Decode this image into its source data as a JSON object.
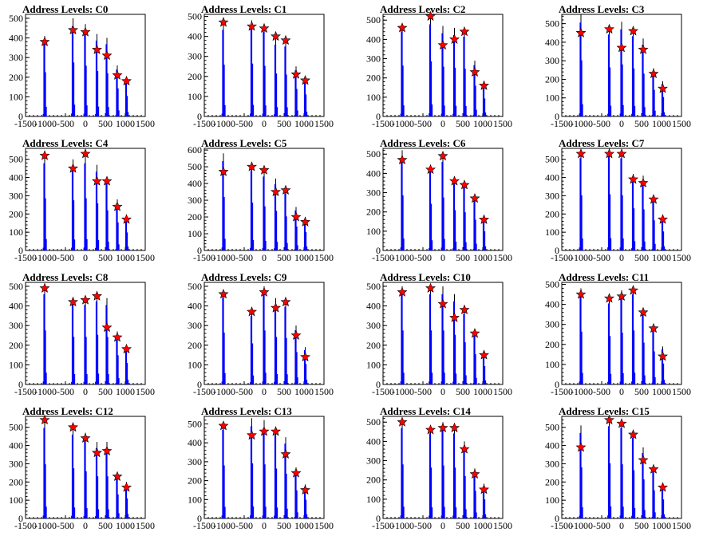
{
  "x_ticks": [
    "-1500",
    "-1000",
    "-500",
    "0",
    "500",
    "1000",
    "1500"
  ],
  "colors": {
    "hist": "#0000ff",
    "marker": "#ff0000",
    "marker_edge": "#000000",
    "axis": "#000000"
  },
  "chart_data": [
    {
      "type": "bar",
      "title": "Address Levels: C0",
      "xlim": [
        -1500,
        1500
      ],
      "ylim": [
        0,
        520
      ],
      "yticks": [
        0,
        100,
        200,
        300,
        400,
        500
      ],
      "bins": [
        -1020,
        -310,
        0,
        290,
        540,
        800,
        1030
      ],
      "values": [
        410,
        500,
        470,
        420,
        400,
        260,
        190
      ],
      "markers": [
        380,
        440,
        430,
        340,
        310,
        210,
        180
      ]
    },
    {
      "type": "bar",
      "title": "Address Levels: C1",
      "xlim": [
        -1500,
        1500
      ],
      "ylim": [
        0,
        510
      ],
      "yticks": [
        0,
        100,
        200,
        300,
        400,
        500
      ],
      "bins": [
        -1020,
        -310,
        0,
        290,
        540,
        800,
        1030
      ],
      "values": [
        470,
        480,
        460,
        390,
        380,
        250,
        200
      ],
      "markers": [
        470,
        450,
        440,
        400,
        380,
        210,
        180
      ]
    },
    {
      "type": "bar",
      "title": "Address Levels: C2",
      "xlim": [
        -1500,
        1500
      ],
      "ylim": [
        0,
        530
      ],
      "yticks": [
        0,
        100,
        200,
        300,
        400,
        500
      ],
      "bins": [
        -1020,
        -310,
        0,
        290,
        540,
        800,
        1030
      ],
      "values": [
        480,
        520,
        470,
        460,
        450,
        290,
        170
      ],
      "markers": [
        460,
        520,
        370,
        400,
        440,
        230,
        160
      ]
    },
    {
      "type": "bar",
      "title": "Address Levels: C3",
      "xlim": [
        -1500,
        1500
      ],
      "ylim": [
        0,
        550
      ],
      "yticks": [
        0,
        100,
        200,
        300,
        400,
        500
      ],
      "bins": [
        -1020,
        -310,
        0,
        290,
        540,
        800,
        1030
      ],
      "values": [
        550,
        480,
        510,
        470,
        420,
        260,
        190
      ],
      "markers": [
        450,
        470,
        370,
        460,
        360,
        230,
        150
      ]
    },
    {
      "type": "bar",
      "title": "Address Levels: C4",
      "xlim": [
        -1500,
        1500
      ],
      "ylim": [
        0,
        560
      ],
      "yticks": [
        0,
        100,
        200,
        300,
        400,
        500
      ],
      "bins": [
        -1020,
        -310,
        0,
        290,
        540,
        800,
        1030
      ],
      "values": [
        520,
        500,
        520,
        470,
        400,
        280,
        180
      ],
      "markers": [
        520,
        450,
        530,
        380,
        380,
        240,
        170
      ]
    },
    {
      "type": "bar",
      "title": "Address Levels: C5",
      "xlim": [
        -1500,
        1500
      ],
      "ylim": [
        0,
        610
      ],
      "yticks": [
        0,
        100,
        200,
        300,
        400,
        500,
        600
      ],
      "bins": [
        -1020,
        -310,
        0,
        290,
        540,
        800,
        1030
      ],
      "values": [
        580,
        520,
        480,
        430,
        370,
        260,
        200
      ],
      "markers": [
        470,
        500,
        480,
        350,
        360,
        200,
        170
      ]
    },
    {
      "type": "bar",
      "title": "Address Levels: C6",
      "xlim": [
        -1500,
        1500
      ],
      "ylim": [
        0,
        530
      ],
      "yticks": [
        0,
        100,
        200,
        300,
        400,
        500
      ],
      "bins": [
        -1020,
        -310,
        0,
        290,
        540,
        800,
        1030
      ],
      "values": [
        520,
        440,
        500,
        380,
        360,
        290,
        180
      ],
      "markers": [
        470,
        420,
        490,
        360,
        340,
        270,
        160
      ]
    },
    {
      "type": "bar",
      "title": "Address Levels: C7",
      "xlim": [
        -1500,
        1500
      ],
      "ylim": [
        0,
        560
      ],
      "yticks": [
        0,
        100,
        200,
        300,
        400,
        500
      ],
      "bins": [
        -1020,
        -310,
        0,
        290,
        540,
        800,
        1030
      ],
      "values": [
        550,
        560,
        550,
        420,
        410,
        300,
        190
      ],
      "markers": [
        530,
        530,
        530,
        390,
        370,
        280,
        170
      ]
    },
    {
      "type": "bar",
      "title": "Address Levels: C8",
      "xlim": [
        -1500,
        1500
      ],
      "ylim": [
        0,
        520
      ],
      "yticks": [
        0,
        100,
        200,
        300,
        400,
        500
      ],
      "bins": [
        -1020,
        -310,
        0,
        290,
        540,
        800,
        1030
      ],
      "values": [
        500,
        440,
        440,
        460,
        440,
        270,
        200
      ],
      "markers": [
        490,
        420,
        430,
        450,
        290,
        240,
        180
      ]
    },
    {
      "type": "bar",
      "title": "Address Levels: C9",
      "xlim": [
        -1500,
        1500
      ],
      "ylim": [
        0,
        520
      ],
      "yticks": [
        0,
        100,
        200,
        300,
        400,
        500
      ],
      "bins": [
        -1020,
        -310,
        0,
        290,
        540,
        800,
        1030
      ],
      "values": [
        480,
        380,
        500,
        440,
        430,
        300,
        190
      ],
      "markers": [
        460,
        370,
        470,
        390,
        420,
        250,
        140
      ]
    },
    {
      "type": "bar",
      "title": "Address Levels: C10",
      "xlim": [
        -1500,
        1500
      ],
      "ylim": [
        0,
        520
      ],
      "yticks": [
        0,
        100,
        200,
        300,
        400,
        500
      ],
      "bins": [
        -1020,
        -310,
        0,
        290,
        540,
        800,
        1030
      ],
      "values": [
        500,
        500,
        500,
        460,
        390,
        280,
        170
      ],
      "markers": [
        470,
        490,
        410,
        340,
        380,
        260,
        150
      ]
    },
    {
      "type": "bar",
      "title": "Address Levels: C11",
      "xlim": [
        -1500,
        1500
      ],
      "ylim": [
        0,
        510
      ],
      "yticks": [
        0,
        100,
        200,
        300,
        400,
        500
      ],
      "bins": [
        -1020,
        -310,
        0,
        290,
        540,
        800,
        1030
      ],
      "values": [
        480,
        440,
        470,
        490,
        380,
        300,
        190
      ],
      "markers": [
        450,
        430,
        440,
        470,
        360,
        280,
        140
      ]
    },
    {
      "type": "bar",
      "title": "Address Levels: C12",
      "xlim": [
        -1500,
        1500
      ],
      "ylim": [
        0,
        560
      ],
      "yticks": [
        0,
        100,
        200,
        300,
        400,
        500
      ],
      "bins": [
        -1020,
        -310,
        0,
        290,
        540,
        800,
        1030
      ],
      "values": [
        540,
        500,
        470,
        420,
        420,
        240,
        200
      ],
      "markers": [
        540,
        500,
        440,
        360,
        370,
        230,
        170
      ]
    },
    {
      "type": "bar",
      "title": "Address Levels: C13",
      "xlim": [
        -1500,
        1500
      ],
      "ylim": [
        0,
        540
      ],
      "yticks": [
        0,
        100,
        200,
        300,
        400,
        500
      ],
      "bins": [
        -1020,
        -310,
        0,
        290,
        540,
        800,
        1030
      ],
      "values": [
        510,
        530,
        520,
        480,
        430,
        270,
        180
      ],
      "markers": [
        490,
        440,
        460,
        460,
        340,
        240,
        150
      ]
    },
    {
      "type": "bar",
      "title": "Address Levels: C14",
      "xlim": [
        -1500,
        1500
      ],
      "ylim": [
        0,
        530
      ],
      "yticks": [
        0,
        100,
        200,
        300,
        400,
        500
      ],
      "bins": [
        -1020,
        -310,
        0,
        290,
        540,
        800,
        1030
      ],
      "values": [
        510,
        480,
        500,
        480,
        400,
        260,
        180
      ],
      "markers": [
        500,
        460,
        470,
        470,
        360,
        230,
        150
      ]
    },
    {
      "type": "bar",
      "title": "Address Levels: C15",
      "xlim": [
        -1500,
        1500
      ],
      "ylim": [
        0,
        560
      ],
      "yticks": [
        0,
        100,
        200,
        300,
        400,
        500
      ],
      "bins": [
        -1020,
        -310,
        0,
        290,
        540,
        800,
        1030
      ],
      "values": [
        510,
        550,
        540,
        480,
        390,
        280,
        190
      ],
      "markers": [
        390,
        540,
        520,
        460,
        320,
        270,
        170
      ]
    }
  ]
}
